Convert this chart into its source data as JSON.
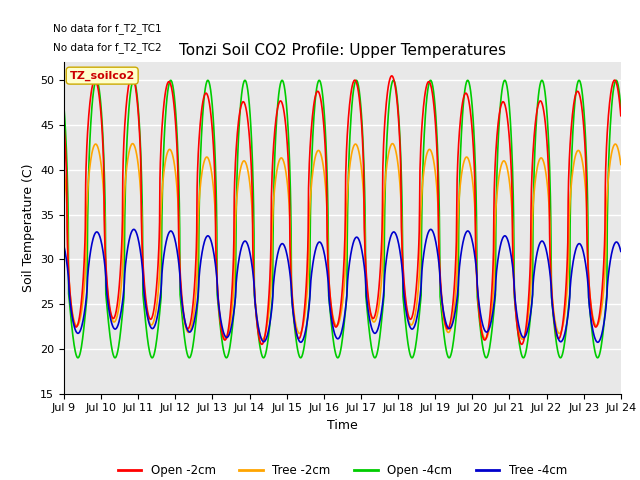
{
  "title": "Tonzi Soil CO2 Profile: Upper Temperatures",
  "xlabel": "Time",
  "ylabel": "Soil Temperature (C)",
  "ylim": [
    15,
    52
  ],
  "yticks": [
    15,
    20,
    25,
    30,
    35,
    40,
    45,
    50
  ],
  "xlim_start": 9.0,
  "xlim_end": 24.0,
  "xtick_labels": [
    "Jul 9",
    "Jul 10",
    "Jul 11",
    "Jul 12",
    "Jul 13",
    "Jul 14",
    "Jul 15",
    "Jul 16",
    "Jul 17",
    "Jul 18",
    "Jul 19",
    "Jul 20",
    "Jul 21",
    "Jul 22",
    "Jul 23",
    "Jul 24"
  ],
  "xtick_positions": [
    9,
    10,
    11,
    12,
    13,
    14,
    15,
    16,
    17,
    18,
    19,
    20,
    21,
    22,
    23,
    24
  ],
  "legend_labels": [
    "Open -2cm",
    "Tree -2cm",
    "Open -4cm",
    "Tree -4cm"
  ],
  "legend_colors": [
    "#FF0000",
    "#FFA500",
    "#00CC00",
    "#0000CC"
  ],
  "no_data_texts": [
    "No data for f_T2_TC1",
    "No data for f_T2_TC2"
  ],
  "annotation_text": "TZ_soilco2",
  "annotation_box_color": "#FFFFCC",
  "annotation_box_edge": "#CCAA00",
  "background_color": "#FFFFFF",
  "plot_bg_color": "#E8E8E8",
  "grid_color": "#FFFFFF",
  "title_fontsize": 11,
  "axis_fontsize": 9,
  "tick_fontsize": 8,
  "line_width": 1.2
}
